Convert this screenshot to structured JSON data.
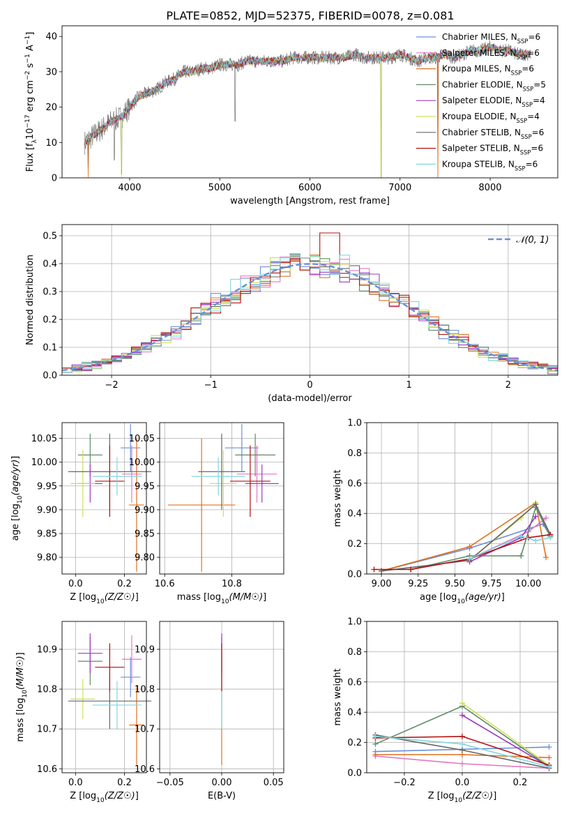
{
  "title": "PLATE=0852, MJD=52375, FIBERID=0078, z=0.081",
  "colors": {
    "Chabrier MILES": "#6a8fd8",
    "Salpeter MILES": "#e377c2",
    "Kroupa MILES": "#e0701f",
    "Chabrier ELODIE": "#5f8a66",
    "Salpeter ELODIE": "#9a3cc0",
    "Kroupa ELODIE": "#cde05a",
    "Chabrier STELIB": "#666666",
    "Salpeter STELIB": "#b01010",
    "Kroupa STELIB": "#7fd6e0"
  },
  "chart_data": [
    {
      "id": "spectrum",
      "type": "line",
      "xlabel": "wavelength [Angstrom, rest frame]",
      "ylabel_parts": [
        "Flux [f",
        "λ",
        "10",
        "−17",
        " erg cm",
        "−2",
        " s",
        "−1",
        " A",
        "−1",
        "]"
      ],
      "xlim": [
        3250,
        8750
      ],
      "ylim": [
        0,
        43
      ],
      "xticks": [
        4000,
        5000,
        6000,
        7000,
        8000
      ],
      "yticks": [
        0,
        10,
        20,
        30,
        40
      ],
      "grid": false,
      "legend_position": "right",
      "legend": [
        {
          "label": "Chabrier MILES",
          "nssp": "6"
        },
        {
          "label": "Salpeter MILES",
          "nssp": "6"
        },
        {
          "label": "Kroupa MILES",
          "nssp": "6"
        },
        {
          "label": "Chabrier ELODIE",
          "nssp": "5"
        },
        {
          "label": "Salpeter ELODIE",
          "nssp": "4"
        },
        {
          "label": "Kroupa ELODIE",
          "nssp": "4"
        },
        {
          "label": "Chabrier STELIB",
          "nssp": "6"
        },
        {
          "label": "Salpeter STELIB",
          "nssp": "6"
        },
        {
          "label": "Kroupa STELIB",
          "nssp": "6"
        }
      ],
      "envelope_x": [
        3500,
        3600,
        3700,
        3800,
        3900,
        4000,
        4100,
        4200,
        4300,
        4400,
        4500,
        4600,
        4700,
        4800,
        4900,
        5000,
        5100,
        5200,
        5300,
        5400,
        5500,
        5600,
        5700,
        5800,
        5900,
        6000,
        6100,
        6200,
        6300,
        6400,
        6500,
        6600,
        6700,
        6800,
        6900,
        7000,
        7100,
        7200,
        7300,
        7400,
        7500,
        7600,
        7700,
        7800,
        7900,
        8000,
        8100,
        8200,
        8300,
        8400
      ],
      "envelope_y": [
        10,
        12,
        14,
        16,
        17,
        20,
        23,
        24,
        25,
        27,
        28,
        30,
        30,
        31,
        31,
        32,
        32,
        32,
        33,
        33,
        33,
        33,
        33,
        34,
        34,
        34,
        34,
        34,
        34,
        34,
        35,
        34,
        34,
        34,
        34,
        35,
        34,
        33,
        34,
        34,
        35,
        34,
        35,
        36,
        36,
        37,
        36,
        36,
        35,
        35
      ],
      "continuum_flux": 0,
      "spectrum_range": [
        3500,
        8450
      ],
      "dropouts": [
        [
          3540,
          3
        ],
        [
          3830,
          5
        ],
        [
          3910,
          1
        ],
        [
          5170,
          16
        ],
        [
          6790,
          0
        ],
        [
          7420,
          0
        ]
      ]
    },
    {
      "id": "residuals",
      "type": "bar",
      "xlabel": "(data-model)/error",
      "ylabel": "Normed distribution",
      "xlim": [
        -2.5,
        2.5
      ],
      "ylim": [
        0,
        0.54
      ],
      "xticks": [
        -2,
        -1,
        0,
        1,
        2
      ],
      "yticks": [
        0.0,
        0.1,
        0.2,
        0.3,
        0.4,
        0.5
      ],
      "grid": true,
      "bin_width": 0.1,
      "gaussian_label": "𝒩(0, 1)",
      "legend_position": "top-right"
    },
    {
      "id": "age-vs-Z",
      "type": "scatter",
      "xlabel": "Z [log10(Z/Z☉)]",
      "ylabel": "age  [log10(age/yr)]",
      "xlim": [
        -0.055,
        0.29
      ],
      "ylim": [
        9.765,
        10.083
      ],
      "xticks": [
        0.0,
        0.2
      ],
      "yticks": [
        9.8,
        9.85,
        9.9,
        9.95,
        10.0,
        10.05
      ],
      "grid": true,
      "points": [
        {
          "model": "Chabrier MILES",
          "x": 0.225,
          "y": 10.03,
          "xerr": 0.04,
          "yerr": 0.05
        },
        {
          "model": "Salpeter MILES",
          "x": 0.23,
          "y": 9.975,
          "xerr": 0.04,
          "yerr": 0.06
        },
        {
          "model": "Kroupa MILES",
          "x": 0.25,
          "y": 9.91,
          "xerr": 0.03,
          "yerr": 0.14
        },
        {
          "model": "Chabrier ELODIE",
          "x": 0.06,
          "y": 10.015,
          "xerr": 0.05,
          "yerr": 0.045
        },
        {
          "model": "Salpeter ELODIE",
          "x": 0.06,
          "y": 9.955,
          "xerr": 0.05,
          "yerr": 0.04
        },
        {
          "model": "Kroupa ELODIE",
          "x": 0.03,
          "y": 9.955,
          "xerr": 0.05,
          "yerr": 0.07
        },
        {
          "model": "Chabrier STELIB",
          "x": 0.14,
          "y": 9.98,
          "xerr": 0.17,
          "yerr": 0.08
        },
        {
          "model": "Salpeter STELIB",
          "x": 0.14,
          "y": 9.96,
          "xerr": 0.06,
          "yerr": 0.075
        },
        {
          "model": "Kroupa STELIB",
          "x": 0.17,
          "y": 9.97,
          "xerr": 0.1,
          "yerr": 0.04
        }
      ]
    },
    {
      "id": "age-vs-mass",
      "type": "scatter",
      "xlabel": "mass [log10(M/M☉)]",
      "ylabel": "",
      "xlim": [
        10.585,
        10.955
      ],
      "ylim": [
        9.765,
        10.083
      ],
      "xticks": [
        10.6,
        10.8
      ],
      "yticks": [
        9.8,
        9.85,
        9.9,
        9.95,
        10.0,
        10.05
      ],
      "grid": true,
      "points": [
        {
          "model": "Chabrier MILES",
          "x": 10.83,
          "y": 10.03,
          "xerr": 0.05,
          "yerr": 0.05
        },
        {
          "model": "Salpeter MILES",
          "x": 10.875,
          "y": 9.975,
          "xerr": 0.06,
          "yerr": 0.06
        },
        {
          "model": "Kroupa MILES",
          "x": 10.71,
          "y": 9.91,
          "xerr": 0.1,
          "yerr": 0.14
        },
        {
          "model": "Chabrier ELODIE",
          "x": 10.87,
          "y": 10.015,
          "xerr": 0.06,
          "yerr": 0.045
        },
        {
          "model": "Salpeter ELODIE",
          "x": 10.89,
          "y": 9.955,
          "xerr": 0.05,
          "yerr": 0.04
        },
        {
          "model": "Kroupa ELODIE",
          "x": 10.775,
          "y": 9.955,
          "xerr": 0.04,
          "yerr": 0.07
        },
        {
          "model": "Chabrier STELIB",
          "x": 10.77,
          "y": 9.98,
          "xerr": 0.07,
          "yerr": 0.08
        },
        {
          "model": "Salpeter STELIB",
          "x": 10.855,
          "y": 9.96,
          "xerr": 0.06,
          "yerr": 0.075
        },
        {
          "model": "Kroupa STELIB",
          "x": 10.76,
          "y": 9.97,
          "xerr": 0.08,
          "yerr": 0.04
        }
      ]
    },
    {
      "id": "weight-vs-age",
      "type": "line",
      "xlabel": "age  [log10(age/yr)]",
      "ylabel": "mass weight",
      "xlim": [
        8.9,
        10.2
      ],
      "ylim": [
        0,
        1.0
      ],
      "xticks": [
        9.0,
        9.25,
        9.5,
        9.75,
        10.0
      ],
      "yticks": [
        0.0,
        0.2,
        0.4,
        0.6,
        0.8,
        1.0
      ],
      "grid": true,
      "series": [
        {
          "model": "Chabrier MILES",
          "x": [
            9.0,
            9.6,
            10.1,
            10.15
          ],
          "y": [
            0.02,
            0.17,
            0.33,
            0.25
          ]
        },
        {
          "model": "Salpeter MILES",
          "x": [
            9.2,
            9.6,
            10.0,
            10.12
          ],
          "y": [
            0.03,
            0.1,
            0.28,
            0.37
          ]
        },
        {
          "model": "Kroupa MILES",
          "x": [
            9.0,
            9.6,
            10.05,
            10.12
          ],
          "y": [
            0.02,
            0.18,
            0.47,
            0.11
          ]
        },
        {
          "model": "Chabrier ELODIE",
          "x": [
            9.2,
            9.6,
            9.95,
            10.05,
            10.15
          ],
          "y": [
            0.03,
            0.12,
            0.12,
            0.44,
            0.25
          ]
        },
        {
          "model": "Salpeter ELODIE",
          "x": [
            9.6,
            9.95,
            10.05
          ],
          "y": [
            0.08,
            0.24,
            0.38
          ]
        },
        {
          "model": "Kroupa ELODIE",
          "x": [
            9.6,
            9.95,
            10.05
          ],
          "y": [
            0.09,
            0.37,
            0.47
          ]
        },
        {
          "model": "Chabrier STELIB",
          "x": [
            9.0,
            9.6,
            10.05,
            10.15
          ],
          "y": [
            0.02,
            0.09,
            0.46,
            0.26
          ]
        },
        {
          "model": "Salpeter STELIB",
          "x": [
            8.95,
            9.2,
            9.6,
            10.0,
            10.15
          ],
          "y": [
            0.03,
            0.03,
            0.1,
            0.24,
            0.26
          ]
        },
        {
          "model": "Kroupa STELIB",
          "x": [
            9.6,
            9.95,
            10.05,
            10.15
          ],
          "y": [
            0.1,
            0.25,
            0.22,
            0.24
          ]
        }
      ]
    },
    {
      "id": "mass-vs-Z",
      "type": "scatter",
      "xlabel": "Z [log10(Z/Z☉)]",
      "ylabel": "mass [log10(M/M☉)]",
      "xlim": [
        -0.055,
        0.29
      ],
      "ylim": [
        10.59,
        10.97
      ],
      "xticks": [
        0.0,
        0.2
      ],
      "yticks": [
        10.6,
        10.7,
        10.8,
        10.9
      ],
      "grid": true,
      "points": [
        {
          "model": "Chabrier MILES",
          "x": 0.225,
          "y": 10.83,
          "xerr": 0.04,
          "yerr": 0.05
        },
        {
          "model": "Salpeter MILES",
          "x": 0.23,
          "y": 10.875,
          "xerr": 0.04,
          "yerr": 0.06
        },
        {
          "model": "Kroupa MILES",
          "x": 0.25,
          "y": 10.71,
          "xerr": 0.03,
          "yerr": 0.1
        },
        {
          "model": "Chabrier ELODIE",
          "x": 0.06,
          "y": 10.87,
          "xerr": 0.05,
          "yerr": 0.06
        },
        {
          "model": "Salpeter ELODIE",
          "x": 0.06,
          "y": 10.89,
          "xerr": 0.05,
          "yerr": 0.05
        },
        {
          "model": "Kroupa ELODIE",
          "x": 0.03,
          "y": 10.775,
          "xerr": 0.05,
          "yerr": 0.05
        },
        {
          "model": "Chabrier STELIB",
          "x": 0.14,
          "y": 10.77,
          "xerr": 0.17,
          "yerr": 0.07
        },
        {
          "model": "Salpeter STELIB",
          "x": 0.14,
          "y": 10.855,
          "xerr": 0.06,
          "yerr": 0.06
        },
        {
          "model": "Kroupa STELIB",
          "x": 0.17,
          "y": 10.76,
          "xerr": 0.1,
          "yerr": 0.06
        }
      ]
    },
    {
      "id": "mass-vs-ebv",
      "type": "scatter",
      "xlabel": "E(B-V)",
      "ylabel": "",
      "xlim": [
        -0.06,
        0.06
      ],
      "ylim": [
        10.59,
        10.97
      ],
      "xticks": [
        -0.05,
        0.0,
        0.05
      ],
      "xtick_labels": [
        "−0.05",
        "0.00",
        "0.05"
      ],
      "yticks": [
        10.6,
        10.7,
        10.8,
        10.9
      ],
      "grid": true,
      "points": [
        {
          "model": "Kroupa MILES",
          "x": 0.0,
          "y": 10.71,
          "xerr": 0,
          "yerr": 0.1
        },
        {
          "model": "Kroupa STELIB",
          "x": 0.0,
          "y": 10.76,
          "xerr": 0,
          "yerr": 0.06
        },
        {
          "model": "Chabrier ELODIE",
          "x": 0.0,
          "y": 10.87,
          "xerr": 0,
          "yerr": 0.06
        },
        {
          "model": "Salpeter ELODIE",
          "x": 0.0,
          "y": 10.89,
          "xerr": 0,
          "yerr": 0.05
        },
        {
          "model": "Salpeter STELIB",
          "x": 0.0,
          "y": 10.855,
          "xerr": 0,
          "yerr": 0.06
        }
      ]
    },
    {
      "id": "weight-vs-Z",
      "type": "line",
      "xlabel": "Z [log10(Z/Z☉)]",
      "ylabel": "mass weight",
      "xlim": [
        -0.33,
        0.33
      ],
      "ylim": [
        0,
        1.0
      ],
      "xticks": [
        -0.2,
        0.0,
        0.2
      ],
      "xtick_labels": [
        "−0.2",
        "0.0",
        "0.2"
      ],
      "yticks": [
        0.0,
        0.2,
        0.4,
        0.6,
        0.8,
        1.0
      ],
      "grid": true,
      "series": [
        {
          "model": "Chabrier MILES",
          "x": [
            -0.3,
            0.3
          ],
          "y": [
            0.14,
            0.17
          ]
        },
        {
          "model": "Salpeter MILES",
          "x": [
            -0.3,
            0.0,
            0.3
          ],
          "y": [
            0.11,
            0.06,
            0.03
          ]
        },
        {
          "model": "Kroupa MILES",
          "x": [
            -0.3,
            0.0,
            0.3
          ],
          "y": [
            0.12,
            0.12,
            0.1
          ]
        },
        {
          "model": "Chabrier ELODIE",
          "x": [
            -0.3,
            0.0,
            0.3
          ],
          "y": [
            0.19,
            0.44,
            0.04
          ]
        },
        {
          "model": "Salpeter ELODIE",
          "x": [
            0.0,
            0.3
          ],
          "y": [
            0.38,
            0.04
          ]
        },
        {
          "model": "Kroupa ELODIE",
          "x": [
            0.0,
            0.3
          ],
          "y": [
            0.46,
            0.05
          ]
        },
        {
          "model": "Chabrier STELIB",
          "x": [
            -0.3,
            0.0,
            0.3
          ],
          "y": [
            0.25,
            0.15,
            0.03
          ]
        },
        {
          "model": "Salpeter STELIB",
          "x": [
            -0.3,
            0.0,
            0.3
          ],
          "y": [
            0.23,
            0.24,
            0.05
          ]
        },
        {
          "model": "Kroupa STELIB",
          "x": [
            -0.3,
            0.0,
            0.3
          ],
          "y": [
            0.24,
            0.19,
            0.04
          ]
        }
      ]
    }
  ]
}
